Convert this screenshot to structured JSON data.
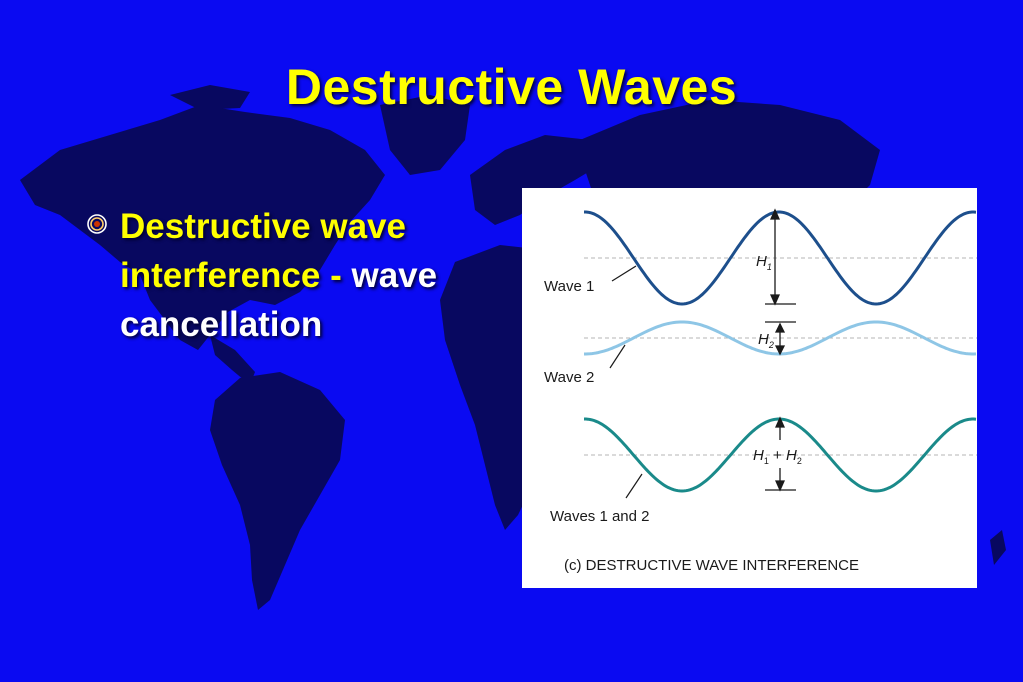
{
  "slide": {
    "title": "Destructive Waves",
    "bullet": {
      "icon": "target-bullet-icon",
      "term": "Destructive wave interference",
      "separator": " - ",
      "description": "wave cancellation"
    }
  },
  "figure": {
    "labels": {
      "wave1": "Wave 1",
      "wave2": "Wave 2",
      "combined": "Waves 1 and 2",
      "h1": "H",
      "h1_sub": "1",
      "h2": "H",
      "h2_sub": "2",
      "sum_h1": "H",
      "sum_h1_sub": "1",
      "sum_plus": " + ",
      "sum_h2": "H",
      "sum_h2_sub": "2"
    },
    "caption": "(c) DESTRUCTIVE WAVE INTERFERENCE",
    "colors": {
      "wave1": "#1d4f8c",
      "wave2": "#8ec6e6",
      "combined": "#1a8a8a"
    }
  },
  "theme": {
    "background": "#0a0af2",
    "map": "#080860",
    "title_color": "#ffff00",
    "text_color": "#ffffff"
  }
}
